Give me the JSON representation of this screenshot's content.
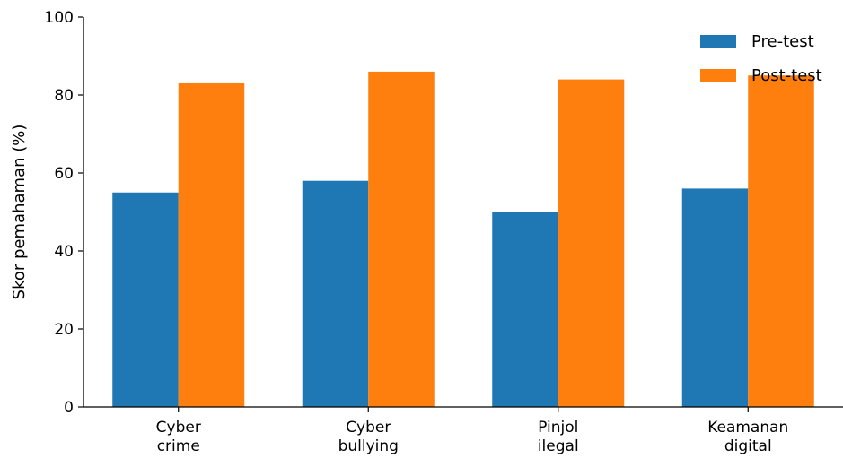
{
  "chart_data": {
    "type": "bar",
    "categories": [
      [
        "Cyber",
        "crime"
      ],
      [
        "Cyber",
        "bullying"
      ],
      [
        "Pinjol",
        "ilegal"
      ],
      [
        "Keamanan",
        "digital"
      ]
    ],
    "series": [
      {
        "name": "Pre-test",
        "values": [
          55,
          58,
          50,
          56
        ],
        "color": "#1f77b4"
      },
      {
        "name": "Post-test",
        "values": [
          83,
          86,
          84,
          85
        ],
        "color": "#ff7f0e"
      }
    ],
    "ylabel": "Skor pemahaman (%)",
    "xlabel": "",
    "ylim": [
      0,
      100
    ],
    "yticks": [
      0,
      20,
      40,
      60,
      80,
      100
    ],
    "legend_position": "top-right",
    "grid": false
  }
}
